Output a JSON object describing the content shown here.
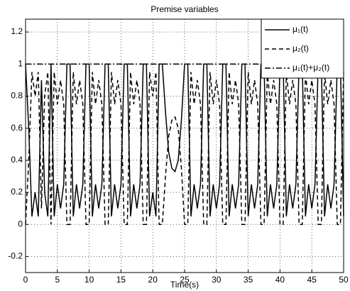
{
  "chart_data": {
    "type": "line",
    "title": "Premise variables",
    "xlabel": "Time(s)",
    "x": [
      0,
      0.5,
      1,
      1.5,
      2,
      2.5,
      3,
      3.5,
      4,
      4.5,
      5,
      5.5,
      6,
      6.5,
      7,
      7.5,
      8,
      8.5,
      9,
      9.5,
      10,
      10.5,
      11,
      11.5,
      12,
      12.5,
      13,
      13.5,
      14,
      14.5,
      15,
      15.5,
      16,
      16.5,
      17,
      17.5,
      18,
      18.5,
      19,
      19.5,
      20,
      20.5,
      21,
      21.5,
      22,
      22.5,
      23,
      23.5,
      24,
      24.5,
      25,
      25.5,
      26,
      26.5,
      27,
      27.5,
      28,
      28.5,
      29,
      29.5,
      30,
      30.5,
      31,
      31.5,
      32,
      32.5,
      33,
      33.5,
      34,
      34.5,
      35,
      35.5,
      36,
      36.5,
      37,
      37.5,
      38,
      38.5,
      39,
      39.5,
      40,
      40.5,
      41,
      41.5,
      42,
      42.5,
      43,
      43.5,
      44,
      44.5,
      45,
      45.5,
      46,
      46.5,
      47,
      47.5,
      48,
      48.5,
      49,
      49.5,
      50
    ],
    "series": [
      {
        "name": "μ₁(t)",
        "color": "#000000",
        "style": "solid",
        "values": [
          1,
          0.6,
          0.05,
          0.2,
          0.05,
          0.9,
          0.2,
          0.05,
          1,
          0.05,
          0.25,
          0.1,
          0.25,
          1,
          1,
          0.05,
          0.25,
          0.1,
          0.25,
          1,
          1,
          0.05,
          0.25,
          0.1,
          0.25,
          1,
          1,
          0.05,
          0.25,
          0.1,
          0.25,
          1,
          1,
          0.05,
          0.25,
          0.1,
          0.25,
          1,
          1,
          0.05,
          0.2,
          0.05,
          1,
          1,
          0.7,
          0.45,
          0.35,
          0.33,
          0.4,
          0.65,
          1,
          1,
          0.05,
          0.25,
          0.1,
          0.25,
          1,
          1,
          0.05,
          0.25,
          0.1,
          0.25,
          1,
          1,
          0.05,
          0.25,
          0.1,
          0.25,
          1,
          1,
          0.05,
          0.25,
          0.1,
          0.25,
          1,
          1,
          0.05,
          0.25,
          0.1,
          0.25,
          1,
          1,
          0.05,
          0.25,
          0.1,
          0.25,
          1,
          1,
          0.05,
          0.25,
          0.1,
          0.25,
          1,
          1,
          0.05,
          0.25,
          0.1,
          0.25,
          1,
          1,
          0.05
        ]
      },
      {
        "name": "μ₂(t)",
        "color": "#000000",
        "style": "dashed",
        "values": [
          0,
          0.4,
          0.95,
          0.8,
          0.95,
          0.1,
          0.8,
          0.95,
          0,
          0.95,
          0.75,
          0.9,
          0.75,
          0,
          0,
          0.95,
          0.75,
          0.9,
          0.75,
          0,
          0,
          0.95,
          0.75,
          0.9,
          0.75,
          0,
          0,
          0.95,
          0.75,
          0.9,
          0.75,
          0,
          0,
          0.95,
          0.75,
          0.9,
          0.75,
          0,
          0,
          0.95,
          0.8,
          0.95,
          0,
          0,
          0.3,
          0.55,
          0.65,
          0.67,
          0.6,
          0.35,
          0,
          0,
          0.95,
          0.75,
          0.9,
          0.75,
          0,
          0,
          0.95,
          0.75,
          0.9,
          0.75,
          0,
          0,
          0.95,
          0.75,
          0.9,
          0.75,
          0,
          0,
          0.95,
          0.75,
          0.9,
          0.75,
          0,
          0,
          0.95,
          0.75,
          0.9,
          0.75,
          0,
          0,
          0.95,
          0.75,
          0.9,
          0.75,
          0,
          0,
          0.95,
          0.75,
          0.9,
          0.75,
          0,
          0,
          0.95,
          0.75,
          0.9,
          0.75,
          0,
          0,
          0.95
        ]
      },
      {
        "name": "μ₁(t)+μ₂(t)",
        "color": "#000000",
        "style": "dashdot",
        "values": [
          1,
          1,
          1,
          1,
          1,
          1,
          1,
          1,
          1,
          1,
          1,
          1,
          1,
          1,
          1,
          1,
          1,
          1,
          1,
          1,
          1,
          1,
          1,
          1,
          1,
          1,
          1,
          1,
          1,
          1,
          1,
          1,
          1,
          1,
          1,
          1,
          1,
          1,
          1,
          1,
          1,
          1,
          1,
          1,
          1,
          1,
          1,
          1,
          1,
          1,
          1,
          1,
          1,
          1,
          1,
          1,
          1,
          1,
          1,
          1,
          1,
          1,
          1,
          1,
          1,
          1,
          1,
          1,
          1,
          1,
          1,
          1,
          1,
          1,
          1,
          1,
          1,
          1,
          1,
          1,
          1,
          1,
          1,
          1,
          1,
          1,
          1,
          1,
          1,
          1,
          1,
          1,
          1,
          1,
          1,
          1,
          1,
          1,
          1,
          1,
          1
        ]
      }
    ],
    "xlim": [
      0,
      50
    ],
    "xticks": [
      0,
      5,
      10,
      15,
      20,
      25,
      30,
      35,
      40,
      45,
      50
    ],
    "ylim": [
      -0.3,
      1.28
    ],
    "yticks": [
      -0.2,
      0,
      0.2,
      0.4,
      0.6,
      0.8,
      1,
      1.2
    ],
    "grid": true,
    "legend": "top-right"
  }
}
